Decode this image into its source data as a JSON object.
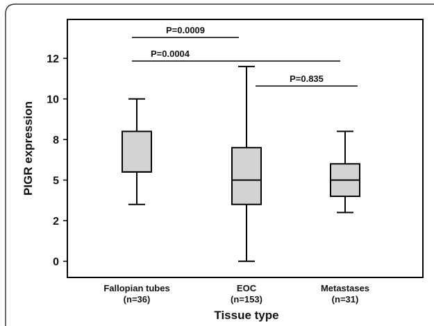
{
  "chart_data": {
    "type": "box",
    "x_label": "Tissue type",
    "y_label": "PIGR expression",
    "categories": [
      "Fallopian tubes",
      "EOC",
      "Metastases"
    ],
    "category_counts": [
      "(n=36)",
      "(n=153)",
      "(n=31)"
    ],
    "boxes": [
      {
        "min": 3.5,
        "q1": 5.5,
        "median": 5.5,
        "q3": 8.0,
        "max": 10.0
      },
      {
        "min": 0,
        "q1": 3.5,
        "median": 5.0,
        "q3": 7.0,
        "max": 12.0
      },
      {
        "min": 3.0,
        "q1": 4.0,
        "median": 5.0,
        "q3": 6.0,
        "max": 8.0
      }
    ],
    "color": "#d3d3d3",
    "ylim": [
      -1,
      14.9
    ],
    "yticks": [
      0,
      {
        "value": 2.5,
        "label": "2"
      },
      5,
      {
        "value": 7.5,
        "label": "8"
      },
      10,
      {
        "value": 12.5,
        "label": "12"
      }
    ],
    "annotations": [
      "P=0.0009",
      "P=0.0004",
      "P=0.835"
    ]
  }
}
